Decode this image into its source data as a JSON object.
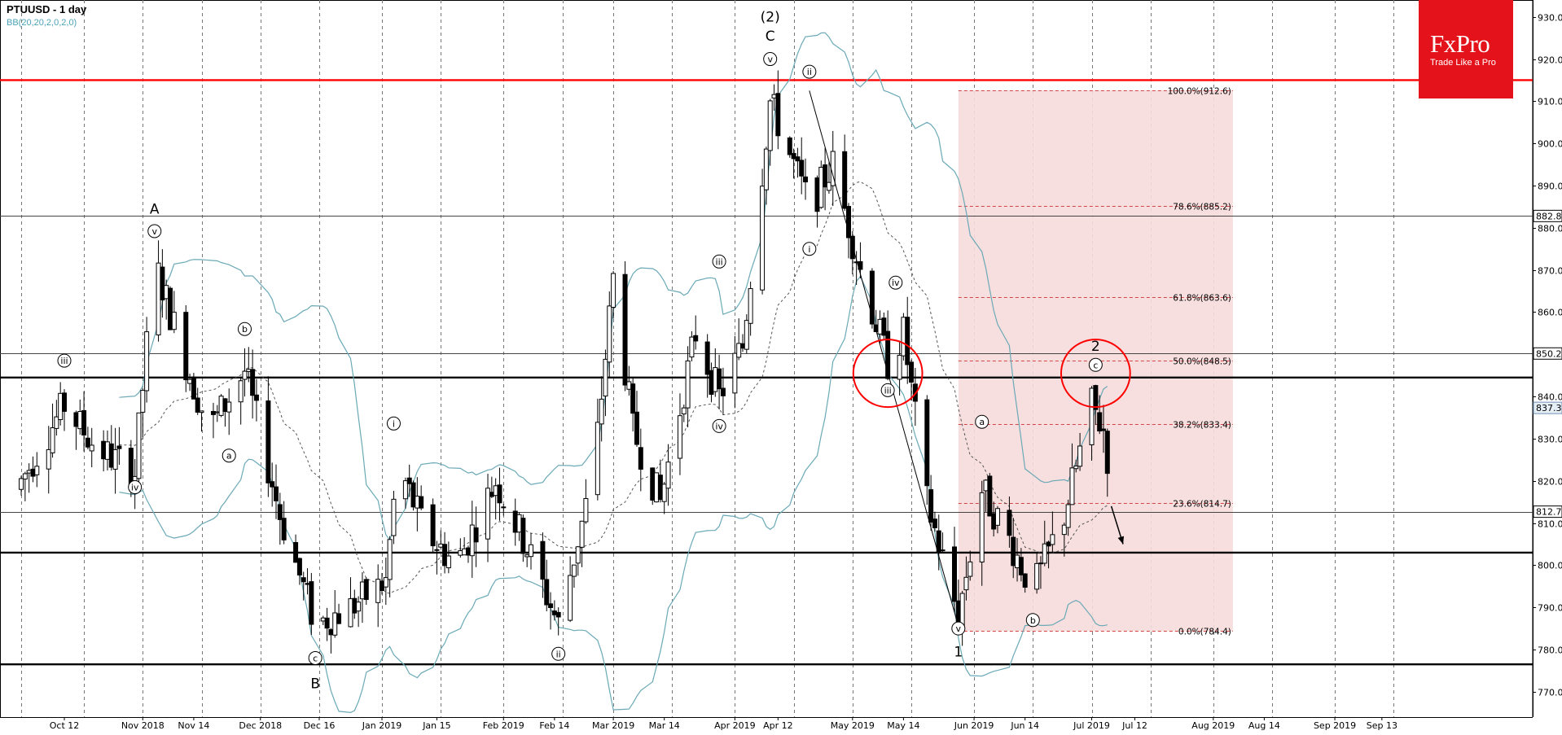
{
  "logo": {
    "brand": "FxPro",
    "tagline": "Trade Like a Pro"
  },
  "chart_data": {
    "type": "candlestick",
    "title": "PTUUSD - 1 day",
    "indicator": "BB(20,20,2,0,2,0)",
    "ylim": [
      764,
      934
    ],
    "y_ticks": [
      770.0,
      780.0,
      790.0,
      800.0,
      810.0,
      820.0,
      830.0,
      840.0,
      850.0,
      860.0,
      870.0,
      880.0,
      890.0,
      900.0,
      910.0,
      920.0,
      930.0
    ],
    "x_labels": [
      "Oct 12",
      "Nov 2018",
      "Nov 14",
      "Dec 2018",
      "Dec 16",
      "Jan 2019",
      "Jan 15",
      "Feb 2019",
      "Feb 14",
      "Mar 2019",
      "Mar 14",
      "Apr 2019",
      "Apr 12",
      "May 2019",
      "May 14",
      "Jun 2019",
      "Jun 14",
      "Jul 2019",
      "Jul 12",
      "Aug 2019",
      "Aug 14",
      "Sep 2019",
      "Sep 13"
    ],
    "price_badges": [
      {
        "label": "882.8",
        "value": 882.8,
        "style": "line"
      },
      {
        "label": "850.2",
        "value": 850.2,
        "style": "line"
      },
      {
        "label": "837.3",
        "value": 837.3,
        "style": "current"
      },
      {
        "label": "812.7",
        "value": 812.7,
        "style": "line"
      }
    ],
    "horizontal_lines": [
      {
        "value": 915.0,
        "color": "#ff0000"
      },
      {
        "value": 844.5,
        "color": "#000000"
      },
      {
        "value": 803.0,
        "color": "#000000"
      },
      {
        "value": 776.5,
        "color": "#000000"
      }
    ],
    "fibonacci": {
      "levels": [
        {
          "label": "100.0%(912.6)",
          "value": 912.6
        },
        {
          "label": "78.6%(885.2)",
          "value": 885.2
        },
        {
          "label": "61.8%(863.6)",
          "value": 863.6
        },
        {
          "label": "50.0%(848.5)",
          "value": 848.5
        },
        {
          "label": "38.2%(833.4)",
          "value": 833.4
        },
        {
          "label": "23.6%(814.7)",
          "value": 814.7
        },
        {
          "label": "0.0%(784.4)",
          "value": 784.4
        }
      ],
      "start_date": "May 28 2019",
      "end_date": "Aug 6 2019"
    },
    "wave_labels": [
      {
        "text": "iii",
        "date": "Oct 12 2018",
        "price": 848.5,
        "circled": true
      },
      {
        "text": "iv",
        "date": "Oct 30 2018",
        "price": 818.5,
        "circled": true
      },
      {
        "text": "A",
        "date": "Nov 4 2018",
        "price": 884.5,
        "circled": false
      },
      {
        "text": "v",
        "date": "Nov 4 2018",
        "price": 879.2,
        "circled": true
      },
      {
        "text": "b",
        "date": "Nov 27 2018",
        "price": 856.0,
        "circled": true
      },
      {
        "text": "a",
        "date": "Nov 23 2018",
        "price": 826.0,
        "circled": true
      },
      {
        "text": "c",
        "date": "Dec 15 2018",
        "price": 778.0,
        "circled": true
      },
      {
        "text": "B",
        "date": "Dec 15 2018",
        "price": 772.0,
        "circled": false
      },
      {
        "text": "i",
        "date": "Jan 4 2019",
        "price": 833.6,
        "circled": true
      },
      {
        "text": "ii",
        "date": "Feb 15 2019",
        "price": 779.0,
        "circled": true
      },
      {
        "text": "iii",
        "date": "Mar 28 2019",
        "price": 872.0,
        "circled": true
      },
      {
        "text": "iv",
        "date": "Mar 28 2019",
        "price": 833.0,
        "circled": true
      },
      {
        "text": "(2)",
        "date": "Apr 10 2019",
        "price": 930.0,
        "circled": false
      },
      {
        "text": "C",
        "date": "Apr 10 2019",
        "price": 925.5,
        "circled": false
      },
      {
        "text": "v",
        "date": "Apr 10 2019",
        "price": 920.0,
        "circled": true
      },
      {
        "text": "ii",
        "date": "Apr 20 2019",
        "price": 917.0,
        "circled": true
      },
      {
        "text": "i",
        "date": "Apr 20 2019",
        "price": 875.0,
        "circled": true
      },
      {
        "text": "iv",
        "date": "May 12 2019",
        "price": 867.0,
        "circled": true
      },
      {
        "text": "iii",
        "date": "May 10 2019",
        "price": 841.5,
        "circled": true
      },
      {
        "text": "a",
        "date": "Jun 3 2019",
        "price": 834.0,
        "circled": true
      },
      {
        "text": "v",
        "date": "May 28 2019",
        "price": 785.0,
        "circled": true
      },
      {
        "text": "1",
        "date": "May 28 2019",
        "price": 779.5,
        "circled": false
      },
      {
        "text": "b",
        "date": "Jun 16 2019",
        "price": 787.0,
        "circled": true
      },
      {
        "text": "2",
        "date": "Jul 2 2019",
        "price": 852.0,
        "circled": false
      },
      {
        "text": "c",
        "date": "Jul 2 2019",
        "price": 847.5,
        "circled": true
      }
    ],
    "circles": [
      {
        "date": "May 10 2019",
        "price": 845.5,
        "radius_days": 4,
        "color": "#ff0000"
      },
      {
        "date": "Jul 2 2019",
        "price": 845.5,
        "radius_days": 4,
        "color": "#ff0000"
      }
    ],
    "arrow": {
      "from_date": "Jul 6 2019",
      "from_price": 814.0,
      "to_date": "Jul 9 2019",
      "to_price": 805.0
    },
    "wave_lines": [
      {
        "from_date": "Apr 20 2019",
        "from_price": 912.5,
        "to_date": "May 28 2019",
        "to_price": 785.5
      }
    ]
  }
}
